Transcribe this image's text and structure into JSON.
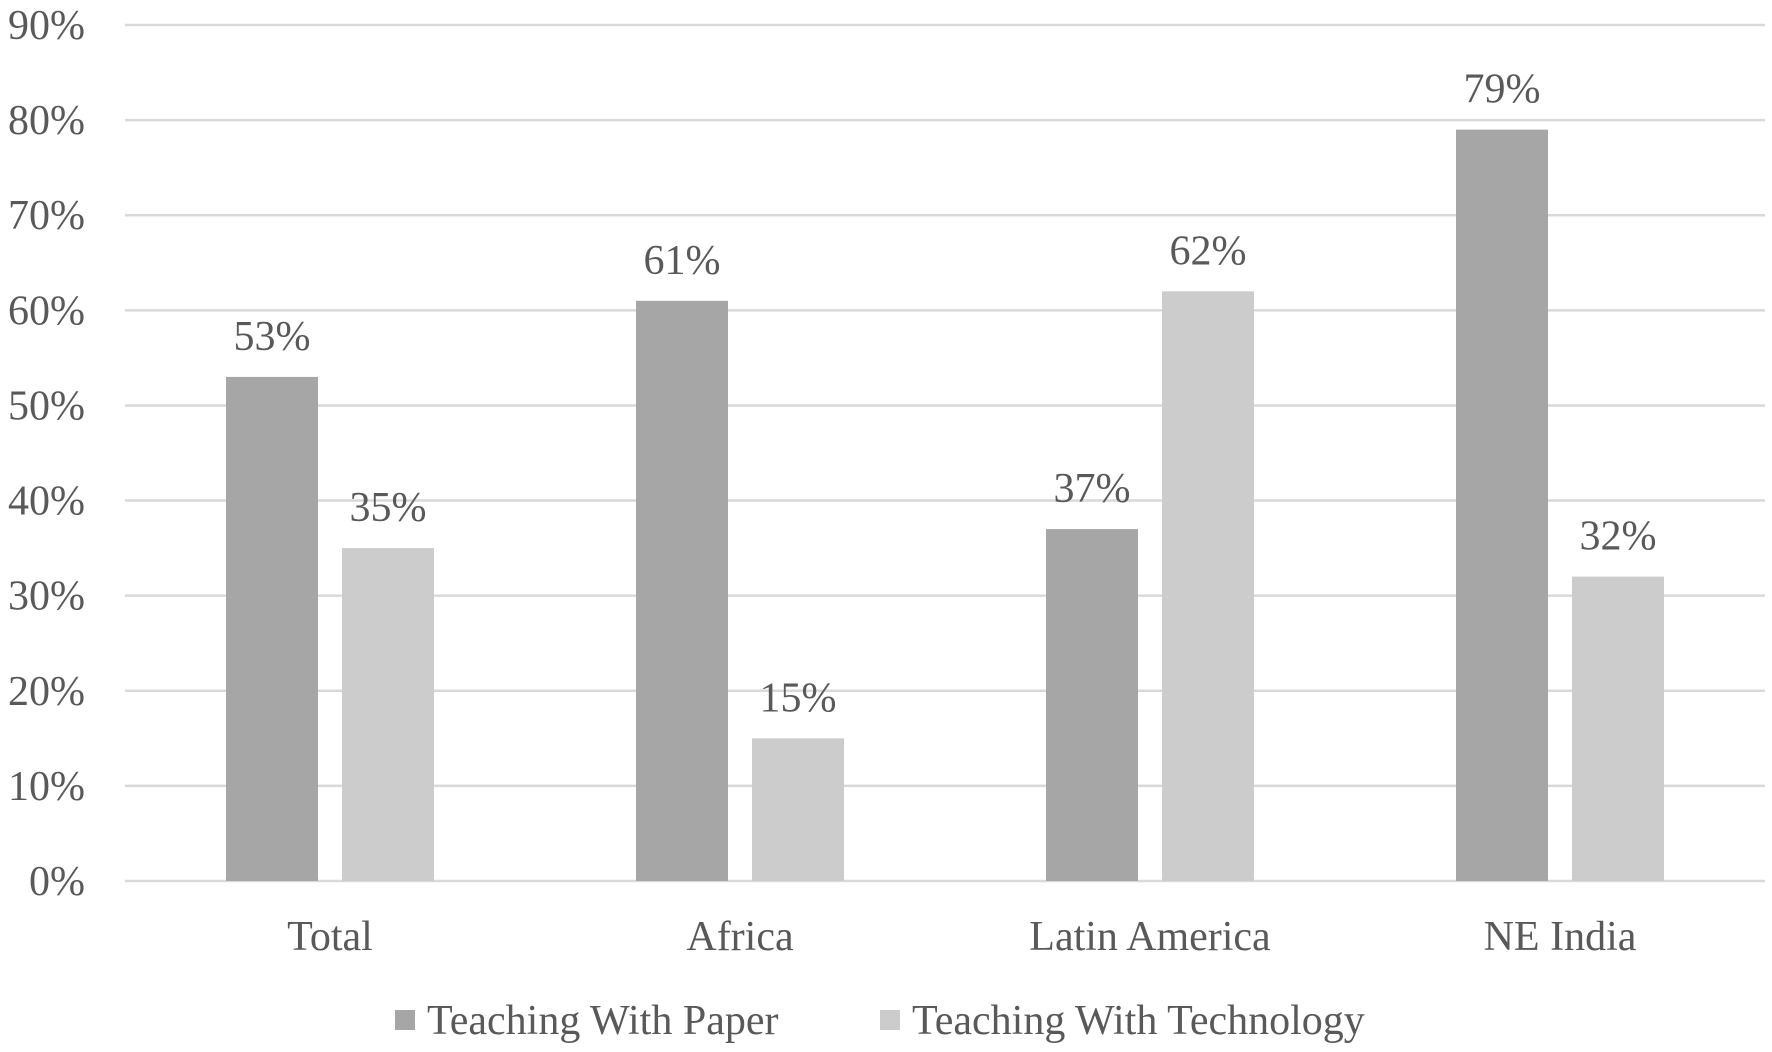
{
  "chart_data": {
    "type": "bar",
    "categories": [
      "Total",
      "Africa",
      "Latin America",
      "NE India"
    ],
    "series": [
      {
        "name": "Teaching With Paper",
        "values": [
          53,
          61,
          37,
          79
        ],
        "labels": [
          "53%",
          "61%",
          "37%",
          "79%"
        ],
        "color": "#a6a6a6"
      },
      {
        "name": "Teaching With Technology",
        "values": [
          35,
          15,
          62,
          32
        ],
        "labels": [
          "35%",
          "15%",
          "62%",
          "32%"
        ],
        "color": "#cccccc"
      }
    ],
    "ylim": [
      0,
      90
    ],
    "yticks": [
      0,
      10,
      20,
      30,
      40,
      50,
      60,
      70,
      80,
      90
    ],
    "ytick_labels": [
      "0%",
      "10%",
      "20%",
      "30%",
      "40%",
      "50%",
      "60%",
      "70%",
      "80%",
      "90%"
    ],
    "grid": true,
    "legend_position": "bottom",
    "title": "",
    "xlabel": "",
    "ylabel": ""
  }
}
